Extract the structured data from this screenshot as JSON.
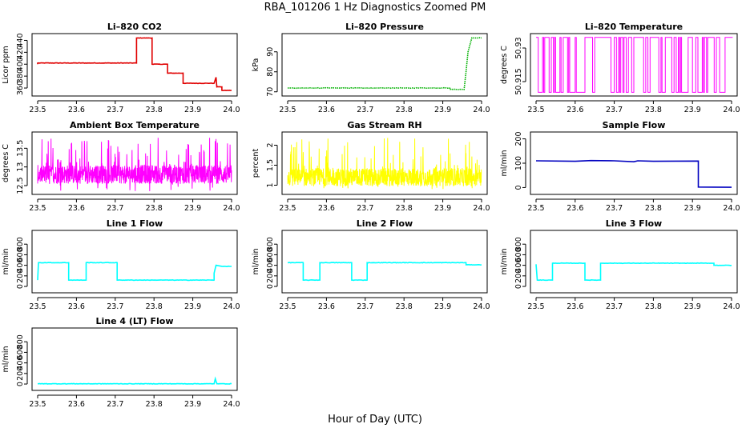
{
  "page": {
    "title": "RBA_101206  1 Hz Diagnostics Zoomed PM",
    "xlabel": "Hour of Day (UTC)"
  },
  "chart_data": [
    {
      "type": "line",
      "title": "Li–820 CO2",
      "ylabel": "Licor ppm",
      "x_ticks": [
        "23.5",
        "23.6",
        "23.7",
        "23.8",
        "23.9",
        "24.0"
      ],
      "xlim": [
        23.5,
        24.0
      ],
      "y_ticks": [
        360,
        380,
        400,
        420,
        440
      ],
      "ylim": [
        352,
        446
      ],
      "color": "#e00000",
      "series": [
        {
          "points": [
            [
              23.5,
              400
            ],
            [
              23.5,
              402
            ],
            [
              23.755,
              402
            ],
            [
              23.755,
              444
            ],
            [
              23.795,
              444
            ],
            [
              23.795,
              400
            ],
            [
              23.835,
              400
            ],
            [
              23.835,
              385
            ],
            [
              23.875,
              385
            ],
            [
              23.875,
              368
            ],
            [
              23.955,
              368
            ],
            [
              23.96,
              378
            ],
            [
              23.962,
              362
            ],
            [
              23.975,
              362
            ],
            [
              23.975,
              356
            ],
            [
              24.0,
              356
            ]
          ]
        }
      ]
    },
    {
      "type": "line",
      "title": "Li–820 Pressure",
      "ylabel": "kPa",
      "x_ticks": [
        "23.5",
        "23.6",
        "23.7",
        "23.8",
        "23.9",
        "24.0"
      ],
      "xlim": [
        23.5,
        24.0
      ],
      "y_ticks": [
        70,
        80,
        90
      ],
      "ylim": [
        69.5,
        97.5
      ],
      "color": "#00b000",
      "dotted": true,
      "series": [
        {
          "points": [
            [
              23.5,
              71.9
            ],
            [
              23.92,
              71.9
            ],
            [
              23.92,
              71.2
            ],
            [
              23.955,
              71.2
            ],
            [
              23.96,
              80
            ],
            [
              23.965,
              90
            ],
            [
              23.975,
              97
            ],
            [
              24.0,
              97
            ]
          ]
        }
      ]
    },
    {
      "type": "line",
      "title": "Li–820 Temperature",
      "ylabel": "degrees C",
      "x_ticks": [
        "23.5",
        "23.6",
        "23.7",
        "23.8",
        "23.9",
        "24.0"
      ],
      "xlim": [
        23.5,
        24.0
      ],
      "y_ticks": [
        50.915,
        50.93
      ],
      "ylim": [
        50.91,
        50.935
      ],
      "color": "#ff00ff",
      "series": [
        {
          "levels": [
            50.91,
            50.935
          ],
          "noise": "binary"
        }
      ]
    },
    {
      "type": "line",
      "title": "Ambient Box Temperature",
      "ylabel": "degrees C",
      "x_ticks": [
        "23.5",
        "23.6",
        "23.7",
        "23.8",
        "23.9",
        "24.0"
      ],
      "xlim": [
        23.5,
        24.0
      ],
      "y_ticks": [
        12.5,
        13.0,
        13.5
      ],
      "ylim": [
        12.35,
        13.85
      ],
      "color": "#ff00ff",
      "series": [
        {
          "mean": 12.8,
          "range": [
            12.35,
            13.8
          ],
          "noise": "dense"
        }
      ]
    },
    {
      "type": "line",
      "title": "Gas Stream RH",
      "ylabel": "percent",
      "x_ticks": [
        "23.5",
        "23.6",
        "23.7",
        "23.8",
        "23.9",
        "24.0"
      ],
      "xlim": [
        23.5,
        24.0
      ],
      "y_ticks": [
        1.0,
        1.5,
        2.0
      ],
      "ylim": [
        0.85,
        2.25
      ],
      "color": "#ffff00",
      "series": [
        {
          "mean": 1.2,
          "range": [
            0.9,
            2.2
          ],
          "noise": "dense"
        }
      ]
    },
    {
      "type": "line",
      "title": "Sample Flow",
      "ylabel": "ml/min",
      "x_ticks": [
        "23.5",
        "23.6",
        "23.7",
        "23.8",
        "23.9",
        "24.0"
      ],
      "xlim": [
        23.5,
        24.0
      ],
      "y_ticks": [
        0,
        100,
        200
      ],
      "ylim": [
        -15,
        215
      ],
      "color": "#0000c0",
      "series": [
        {
          "points": [
            [
              23.5,
              110
            ],
            [
              23.6,
              108
            ],
            [
              23.64,
              111
            ],
            [
              23.7,
              110
            ],
            [
              23.75,
              106
            ],
            [
              23.76,
              110
            ],
            [
              23.8,
              108
            ],
            [
              23.915,
              109
            ],
            [
              23.915,
              2
            ],
            [
              24.0,
              1
            ]
          ]
        }
      ]
    },
    {
      "type": "line",
      "title": "Line 1 Flow",
      "ylabel": "ml/min",
      "x_ticks": [
        "23.5",
        "23.6",
        "23.7",
        "23.8",
        "23.9",
        "24.0"
      ],
      "xlim": [
        23.5,
        24.0
      ],
      "y_ticks": [
        0,
        200,
        400,
        600,
        800
      ],
      "ylim": [
        -60,
        1000
      ],
      "color": "#00ffff",
      "series": [
        {
          "points": [
            [
              23.5,
              120
            ],
            [
              23.502,
              450
            ],
            [
              23.58,
              450
            ],
            [
              23.58,
              120
            ],
            [
              23.625,
              120
            ],
            [
              23.625,
              450
            ],
            [
              23.705,
              450
            ],
            [
              23.705,
              120
            ],
            [
              23.955,
              120
            ],
            [
              23.955,
              250
            ],
            [
              23.96,
              400
            ],
            [
              23.975,
              380
            ],
            [
              24.0,
              380
            ]
          ]
        }
      ]
    },
    {
      "type": "line",
      "title": "Line 2 Flow",
      "ylabel": "ml/min",
      "x_ticks": [
        "23.5",
        "23.6",
        "23.7",
        "23.8",
        "23.9",
        "24.0"
      ],
      "xlim": [
        23.5,
        24.0
      ],
      "y_ticks": [
        0,
        200,
        400,
        600,
        800
      ],
      "ylim": [
        -60,
        1000
      ],
      "color": "#00ffff",
      "series": [
        {
          "points": [
            [
              23.5,
              450
            ],
            [
              23.54,
              450
            ],
            [
              23.54,
              120
            ],
            [
              23.583,
              120
            ],
            [
              23.583,
              450
            ],
            [
              23.665,
              450
            ],
            [
              23.665,
              120
            ],
            [
              23.705,
              120
            ],
            [
              23.705,
              450
            ],
            [
              23.96,
              450
            ],
            [
              23.96,
              410
            ],
            [
              24.0,
              410
            ]
          ]
        }
      ]
    },
    {
      "type": "line",
      "title": "Line 3 Flow",
      "ylabel": "ml/min",
      "x_ticks": [
        "23.5",
        "23.6",
        "23.7",
        "23.8",
        "23.9",
        "24.0"
      ],
      "xlim": [
        23.5,
        24.0
      ],
      "y_ticks": [
        0,
        200,
        400,
        600,
        800
      ],
      "ylim": [
        -60,
        1000
      ],
      "color": "#00ffff",
      "series": [
        {
          "points": [
            [
              23.5,
              420
            ],
            [
              23.503,
              120
            ],
            [
              23.542,
              120
            ],
            [
              23.542,
              440
            ],
            [
              23.625,
              440
            ],
            [
              23.625,
              120
            ],
            [
              23.665,
              120
            ],
            [
              23.665,
              440
            ],
            [
              23.955,
              440
            ],
            [
              23.955,
              400
            ],
            [
              24.0,
              400
            ]
          ]
        }
      ]
    },
    {
      "type": "line",
      "title": "Line 4 (LT) Flow",
      "ylabel": "ml/min",
      "x_ticks": [
        "23.5",
        "23.6",
        "23.7",
        "23.8",
        "23.9",
        "24.0"
      ],
      "xlim": [
        23.5,
        24.0
      ],
      "y_ticks": [
        0,
        200,
        400,
        600,
        800
      ],
      "ylim": [
        -60,
        1000
      ],
      "color": "#00ffff",
      "series": [
        {
          "points": [
            [
              23.5,
              5
            ],
            [
              23.955,
              5
            ],
            [
              23.958,
              100
            ],
            [
              23.962,
              5
            ],
            [
              24.0,
              5
            ]
          ]
        }
      ]
    }
  ]
}
